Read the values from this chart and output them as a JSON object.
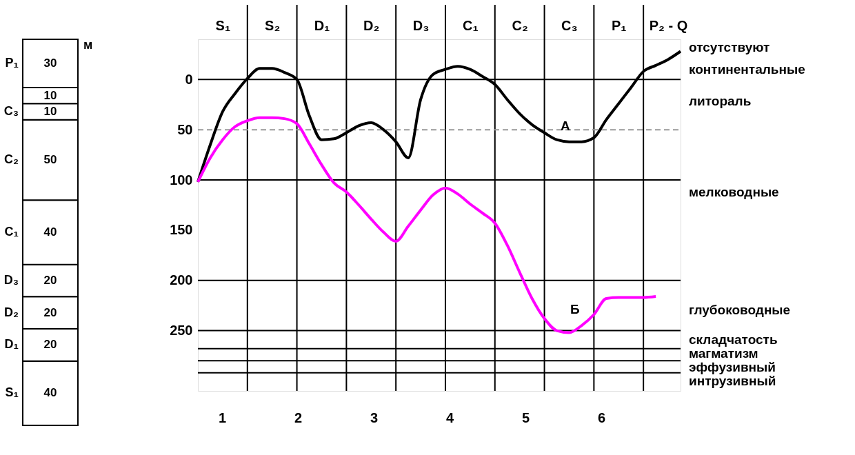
{
  "chart_data": [
    {
      "type": "bar",
      "stacked": true,
      "categories": [
        null
      ],
      "data_labels": true,
      "legend": false,
      "annotations": [
        "м"
      ],
      "series": [
        {
          "name": "S₁",
          "color": "#ffffff",
          "values": [
            40
          ]
        },
        {
          "name": "D₁",
          "color": "#ffffff",
          "values": [
            20
          ]
        },
        {
          "name": "D₂",
          "color": "#ffffff",
          "values": [
            20
          ]
        },
        {
          "name": "D₃",
          "color": "#ffffff",
          "values": [
            20
          ]
        },
        {
          "name": "C₁",
          "color": "#ffffff",
          "values": [
            40
          ]
        },
        {
          "name": "C₂",
          "color": "#ffffff",
          "values": [
            50
          ]
        },
        {
          "name": "C₃",
          "color": "#ffffff",
          "values": [
            10
          ]
        },
        {
          "color": "#ffffff",
          "values": [
            10
          ]
        },
        {
          "name": "P₁",
          "color": "#ffffff",
          "values": [
            30
          ]
        }
      ]
    },
    {
      "type": "line",
      "legend": false,
      "grid": "x",
      "categories": [
        null,
        null,
        "S₁",
        null,
        null,
        null,
        "S₂",
        null,
        null,
        null,
        "D₁",
        null,
        null,
        null,
        "D₂",
        null,
        null,
        null,
        "D₃",
        null,
        null,
        null,
        "C₁",
        null,
        null,
        null,
        "C₂",
        null,
        null,
        null,
        "C₃",
        null,
        null,
        null,
        "P₁",
        null,
        null,
        null,
        "P₂ - Q",
        null
      ],
      "ylim": [
        310,
        -40
      ],
      "yticks": [
        0,
        50,
        100,
        150,
        200,
        250
      ],
      "ref_lines": [
        {
          "axis": "y",
          "value": 0,
          "color": "#000000"
        },
        {
          "axis": "y",
          "value": 50,
          "color": "#999999",
          "line_style": "dashed"
        },
        {
          "axis": "y",
          "value": 100,
          "color": "#000000"
        },
        {
          "axis": "y",
          "value": 200,
          "color": "#000000"
        },
        {
          "axis": "y",
          "value": 250,
          "color": "#000000"
        },
        {
          "axis": "y",
          "value": 268,
          "color": "#000000"
        },
        {
          "axis": "y",
          "value": 280,
          "color": "#000000"
        },
        {
          "axis": "y",
          "value": 292,
          "color": "#000000"
        }
      ],
      "annotations": [
        "А",
        "Б",
        "отсутствуют",
        "континентальные",
        "литораль",
        "мелководные",
        "глубоководные",
        "складчатость",
        "магматизм",
        "эффузивный",
        "интрузивный",
        "1",
        "2",
        "3",
        "4",
        "5",
        "6"
      ],
      "series": [
        {
          "color": "#000000",
          "values": [
            102,
            65,
            32,
            14,
            -1,
            -11,
            -11,
            -7,
            0,
            36,
            60,
            59,
            53,
            46,
            43,
            50,
            62,
            78,
            20,
            -5,
            -10,
            -13,
            -10,
            -3,
            5,
            20,
            34,
            45,
            53,
            60,
            62,
            62,
            58,
            40,
            24,
            8,
            -8,
            -14,
            -20,
            -28
          ]
        },
        {
          "color": "#ff00ff",
          "values": [
            102,
            78,
            60,
            47,
            41,
            38,
            38,
            39,
            44,
            64,
            85,
            103,
            112,
            125,
            139,
            152,
            161,
            146,
            130,
            115,
            108,
            114,
            124,
            133,
            143,
            165,
            192,
            218,
            238,
            250,
            252,
            245,
            234,
            218,
            217,
            217,
            217,
            216,
            null,
            null
          ]
        }
      ]
    }
  ]
}
